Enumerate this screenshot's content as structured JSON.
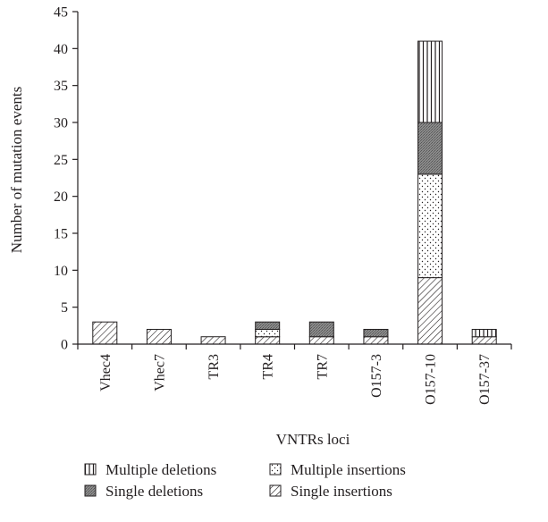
{
  "chart_data": {
    "type": "bar",
    "stacked": true,
    "title": "",
    "xlabel": "VNTRs loci",
    "ylabel": "Number of mutation events",
    "ylim": [
      0,
      45
    ],
    "yticks": [
      0,
      5,
      10,
      15,
      20,
      25,
      30,
      35,
      40,
      45
    ],
    "grid": false,
    "legend_position": "bottom",
    "categories": [
      "Vhec4",
      "Vhec7",
      "TR3",
      "TR4",
      "TR7",
      "O157-3",
      "O157-10",
      "O157-37"
    ],
    "series": [
      {
        "name": "Single insertions",
        "pattern": "diagonal-hatch",
        "values": [
          3,
          2,
          1,
          1,
          1,
          1,
          9,
          1
        ]
      },
      {
        "name": "Multiple insertions",
        "pattern": "dots",
        "values": [
          0,
          0,
          0,
          1,
          0,
          0,
          14,
          0
        ]
      },
      {
        "name": "Single deletions",
        "pattern": "dense-gray",
        "values": [
          0,
          0,
          0,
          1,
          2,
          1,
          7,
          0
        ]
      },
      {
        "name": "Multiple deletions",
        "pattern": "vertical-lines",
        "values": [
          0,
          0,
          0,
          0,
          0,
          0,
          11,
          1
        ]
      }
    ],
    "legend_order": [
      "Multiple deletions",
      "Multiple insertions",
      "Single deletions",
      "Single insertions"
    ]
  }
}
